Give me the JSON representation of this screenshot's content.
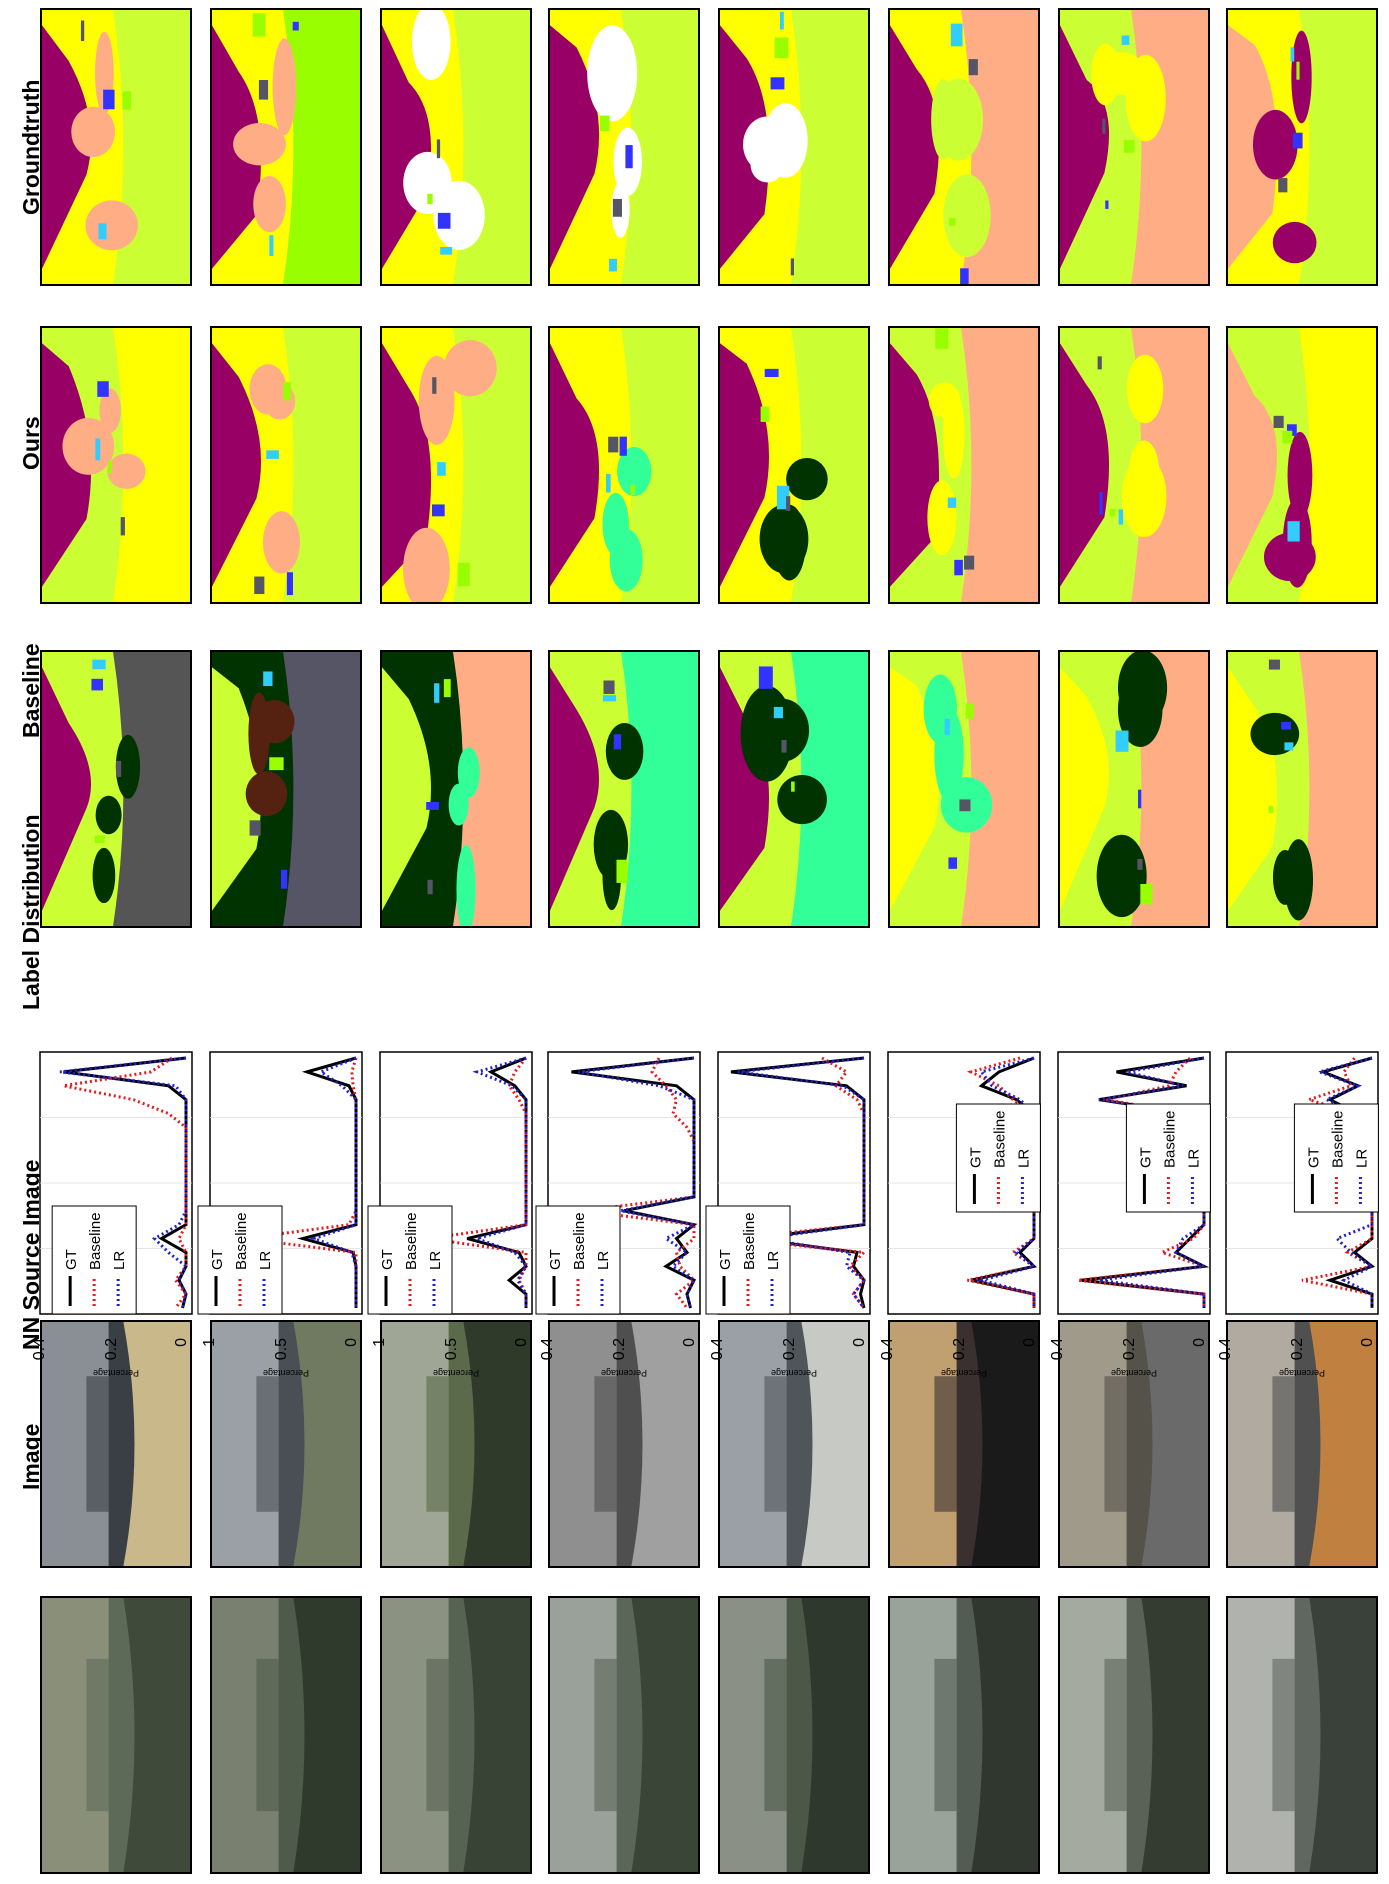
{
  "columns": {
    "image": "Image",
    "nn_source": "NN Source Image",
    "label_dist": "Label Distribution",
    "baseline": "Baseline",
    "ours": "Ours",
    "groundtruth": "Groundtruth"
  },
  "chart_common": {
    "ylabel": "Percentage",
    "legend": [
      "GT",
      "Baseline",
      "LR"
    ],
    "series_colors": {
      "GT": "#000000",
      "Baseline": "#e41a1c",
      "LR": "#1f1fd6"
    }
  },
  "chart_data": [
    {
      "type": "line",
      "ylim": [
        0,
        0.4
      ],
      "yticks": [
        "0.4",
        "0.2",
        "0"
      ],
      "legend_position": "right",
      "x": [
        1,
        2,
        3,
        4,
        5,
        6,
        7,
        8,
        9,
        10,
        11,
        12,
        13,
        14,
        15,
        16,
        17,
        18,
        19
      ],
      "series": [
        {
          "name": "GT",
          "values": [
            0.0,
            0.35,
            0.05,
            0.0,
            0.0,
            0.0,
            0.0,
            0.0,
            0.0,
            0.0,
            0.0,
            0.0,
            0.0,
            0.07,
            0.0,
            0.0,
            0.02,
            0.0,
            0.01
          ]
        },
        {
          "name": "Baseline",
          "values": [
            0.04,
            0.1,
            0.35,
            0.15,
            0.05,
            0.0,
            0.0,
            0.0,
            0.0,
            0.0,
            0.0,
            0.0,
            0.0,
            0.02,
            0.0,
            0.0,
            0.03,
            0.0,
            0.03
          ]
        },
        {
          "name": "LR",
          "values": [
            0.0,
            0.36,
            0.03,
            0.0,
            0.0,
            0.0,
            0.0,
            0.0,
            0.0,
            0.0,
            0.0,
            0.0,
            0.02,
            0.09,
            0.05,
            0.0,
            0.02,
            0.0,
            0.01
          ]
        }
      ]
    },
    {
      "type": "line",
      "ylim": [
        0,
        1
      ],
      "yticks": [
        "1",
        "0.5",
        "0"
      ],
      "legend_position": "top-right",
      "x": [
        1,
        2,
        3,
        4,
        5,
        6,
        7,
        8,
        9,
        10,
        11,
        12,
        13,
        14,
        15,
        16,
        17,
        18,
        19
      ],
      "series": [
        {
          "name": "GT",
          "values": [
            0.0,
            0.35,
            0.05,
            0.0,
            0.0,
            0.0,
            0.0,
            0.0,
            0.0,
            0.0,
            0.0,
            0.0,
            0.0,
            0.38,
            0.02,
            0.0,
            0.0,
            0.0,
            0.0
          ]
        },
        {
          "name": "Baseline",
          "values": [
            0.0,
            0.03,
            0.02,
            0.0,
            0.0,
            0.0,
            0.0,
            0.0,
            0.0,
            0.0,
            0.0,
            0.0,
            0.05,
            0.8,
            0.0,
            0.0,
            0.0,
            0.0,
            0.0
          ]
        },
        {
          "name": "LR",
          "values": [
            0.0,
            0.25,
            0.1,
            0.0,
            0.0,
            0.0,
            0.0,
            0.0,
            0.0,
            0.0,
            0.0,
            0.0,
            0.0,
            0.3,
            0.03,
            0.0,
            0.0,
            0.0,
            0.0
          ]
        }
      ]
    },
    {
      "type": "line",
      "ylim": [
        0,
        1
      ],
      "yticks": [
        "1",
        "0.5",
        "0"
      ],
      "legend_position": "top-right",
      "x": [
        1,
        2,
        3,
        4,
        5,
        6,
        7,
        8,
        9,
        10,
        11,
        12,
        13,
        14,
        15,
        16,
        17,
        18,
        19
      ],
      "series": [
        {
          "name": "GT",
          "values": [
            0.0,
            0.25,
            0.08,
            0.0,
            0.0,
            0.0,
            0.0,
            0.0,
            0.0,
            0.0,
            0.0,
            0.0,
            0.0,
            0.42,
            0.05,
            0.0,
            0.12,
            0.0,
            0.0
          ]
        },
        {
          "name": "Baseline",
          "values": [
            0.0,
            0.08,
            0.12,
            0.05,
            0.0,
            0.0,
            0.0,
            0.0,
            0.0,
            0.0,
            0.0,
            0.0,
            0.0,
            0.7,
            0.0,
            0.0,
            0.05,
            0.0,
            0.0
          ]
        },
        {
          "name": "LR",
          "values": [
            0.0,
            0.35,
            0.1,
            0.0,
            0.0,
            0.0,
            0.0,
            0.0,
            0.0,
            0.0,
            0.0,
            0.0,
            0.0,
            0.35,
            0.08,
            0.0,
            0.06,
            0.0,
            0.0
          ]
        }
      ]
    },
    {
      "type": "line",
      "ylim": [
        0,
        0.4
      ],
      "yticks": [
        "0.4",
        "0.2",
        "0"
      ],
      "legend_position": "top-right",
      "x": [
        1,
        2,
        3,
        4,
        5,
        6,
        7,
        8,
        9,
        10,
        11,
        12,
        13,
        14,
        15,
        16,
        17,
        18,
        19
      ],
      "series": [
        {
          "name": "GT",
          "values": [
            0.0,
            0.35,
            0.05,
            0.0,
            0.0,
            0.0,
            0.0,
            0.0,
            0.0,
            0.0,
            0.0,
            0.2,
            0.0,
            0.05,
            0.02,
            0.08,
            0.0,
            0.02,
            0.01
          ]
        },
        {
          "name": "Baseline",
          "values": [
            0.1,
            0.12,
            0.08,
            0.05,
            0.06,
            0.02,
            0.0,
            0.0,
            0.0,
            0.0,
            0.0,
            0.32,
            0.0,
            0.0,
            0.05,
            0.04,
            0.0,
            0.05,
            0.02
          ]
        },
        {
          "name": "LR",
          "values": [
            0.0,
            0.33,
            0.1,
            0.0,
            0.0,
            0.0,
            0.0,
            0.0,
            0.0,
            0.0,
            0.0,
            0.21,
            0.0,
            0.08,
            0.02,
            0.06,
            0.0,
            0.02,
            0.01
          ]
        }
      ]
    },
    {
      "type": "line",
      "ylim": [
        0,
        0.4
      ],
      "yticks": [
        "0.4",
        "0.2",
        "0"
      ],
      "legend_position": "top-right",
      "x": [
        1,
        2,
        3,
        4,
        5,
        6,
        7,
        8,
        9,
        10,
        11,
        12,
        13,
        14,
        15,
        16,
        17,
        18,
        19
      ],
      "series": [
        {
          "name": "GT",
          "values": [
            0.0,
            0.38,
            0.05,
            0.0,
            0.0,
            0.0,
            0.0,
            0.0,
            0.0,
            0.0,
            0.0,
            0.0,
            0.0,
            0.32,
            0.02,
            0.03,
            0.0,
            0.01,
            0.0
          ]
        },
        {
          "name": "Baseline",
          "values": [
            0.12,
            0.05,
            0.08,
            0.02,
            0.0,
            0.0,
            0.0,
            0.0,
            0.0,
            0.0,
            0.0,
            0.0,
            0.0,
            0.38,
            0.0,
            0.04,
            0.0,
            0.03,
            0.0
          ]
        },
        {
          "name": "LR",
          "values": [
            0.0,
            0.36,
            0.06,
            0.0,
            0.0,
            0.0,
            0.0,
            0.0,
            0.0,
            0.0,
            0.0,
            0.0,
            0.0,
            0.29,
            0.04,
            0.05,
            0.0,
            0.03,
            0.0
          ]
        }
      ]
    },
    {
      "type": "line",
      "ylim": [
        0,
        0.4
      ],
      "yticks": [
        "0.4",
        "0.2",
        "0"
      ],
      "legend_position": "bottom-right",
      "x": [
        1,
        2,
        3,
        4,
        5,
        6,
        7,
        8,
        9,
        10,
        11,
        12,
        13,
        14,
        15,
        16,
        17,
        18,
        19
      ],
      "series": [
        {
          "name": "GT",
          "values": [
            0.0,
            0.1,
            0.15,
            0.05,
            0.0,
            0.0,
            0.0,
            0.0,
            0.0,
            0.0,
            0.0,
            0.0,
            0.0,
            0.0,
            0.04,
            0.0,
            0.18,
            0.0,
            0.0
          ]
        },
        {
          "name": "Baseline",
          "values": [
            0.04,
            0.18,
            0.1,
            0.06,
            0.0,
            0.0,
            0.0,
            0.0,
            0.0,
            0.0,
            0.0,
            0.0,
            0.0,
            0.0,
            0.06,
            0.0,
            0.19,
            0.0,
            0.0
          ]
        },
        {
          "name": "LR",
          "values": [
            0.0,
            0.15,
            0.12,
            0.04,
            0.0,
            0.0,
            0.0,
            0.0,
            0.0,
            0.0,
            0.0,
            0.0,
            0.0,
            0.0,
            0.05,
            0.0,
            0.15,
            0.0,
            0.0
          ]
        }
      ]
    },
    {
      "type": "line",
      "ylim": [
        0,
        0.4
      ],
      "yticks": [
        "0.4",
        "0.2",
        "0"
      ],
      "legend_position": "bottom-right",
      "x": [
        1,
        2,
        3,
        4,
        5,
        6,
        7,
        8,
        9,
        10,
        11,
        12,
        13,
        14,
        15,
        16,
        17,
        18,
        19
      ],
      "series": [
        {
          "name": "GT",
          "values": [
            0.0,
            0.25,
            0.05,
            0.3,
            0.04,
            0.0,
            0.0,
            0.0,
            0.0,
            0.0,
            0.0,
            0.0,
            0.0,
            0.04,
            0.08,
            0.0,
            0.35,
            0.0,
            0.0
          ]
        },
        {
          "name": "Baseline",
          "values": [
            0.04,
            0.08,
            0.1,
            0.28,
            0.05,
            0.0,
            0.0,
            0.0,
            0.0,
            0.0,
            0.0,
            0.0,
            0.0,
            0.03,
            0.12,
            0.0,
            0.36,
            0.0,
            0.0
          ]
        },
        {
          "name": "LR",
          "values": [
            0.0,
            0.22,
            0.06,
            0.3,
            0.04,
            0.0,
            0.0,
            0.0,
            0.0,
            0.0,
            0.0,
            0.0,
            0.0,
            0.06,
            0.08,
            0.0,
            0.3,
            0.0,
            0.0
          ]
        }
      ]
    },
    {
      "type": "line",
      "ylim": [
        0,
        0.4
      ],
      "yticks": [
        "0.4",
        "0.2",
        "0"
      ],
      "legend_position": "bottom-right",
      "x": [
        1,
        2,
        3,
        4,
        5,
        6,
        7,
        8,
        9,
        10,
        11,
        12,
        13,
        14,
        15,
        16,
        17,
        18,
        19
      ],
      "series": [
        {
          "name": "GT",
          "values": [
            0.0,
            0.14,
            0.04,
            0.12,
            0.04,
            0.0,
            0.0,
            0.0,
            0.0,
            0.0,
            0.0,
            0.0,
            0.0,
            0.0,
            0.05,
            0.0,
            0.12,
            0.0,
            0.0
          ]
        },
        {
          "name": "Baseline",
          "values": [
            0.05,
            0.08,
            0.06,
            0.18,
            0.05,
            0.0,
            0.0,
            0.0,
            0.0,
            0.0,
            0.0,
            0.0,
            0.0,
            0.0,
            0.07,
            0.0,
            0.2,
            0.0,
            0.0
          ]
        },
        {
          "name": "LR",
          "values": [
            0.0,
            0.15,
            0.04,
            0.13,
            0.03,
            0.0,
            0.0,
            0.0,
            0.0,
            0.0,
            0.0,
            0.0,
            0.0,
            0.1,
            0.06,
            0.0,
            0.08,
            0.0,
            0.0
          ]
        }
      ]
    }
  ],
  "rows": [
    {
      "photo": [
        "#5d6a58",
        "#8a8f7a",
        "#3f4a3a"
      ],
      "nn": [
        "#3a3f45",
        "#8a8f95",
        "#c9b98a"
      ],
      "baseline": [
        "#ccff33",
        "#990066",
        "#555555",
        "#003300"
      ],
      "ours": [
        "#ccff33",
        "#990066",
        "#ffff00",
        "#ffad85"
      ],
      "gt": [
        "#ffff00",
        "#990066",
        "#ccff33",
        "#ffad85"
      ]
    },
    {
      "photo": [
        "#4e5b4a",
        "#7a8070",
        "#2f3a2d"
      ],
      "nn": [
        "#4a4f55",
        "#9aa0a5",
        "#6f7a60"
      ],
      "baseline": [
        "#003300",
        "#ccff33",
        "#555566",
        "#552211"
      ],
      "ours": [
        "#ffff00",
        "#990066",
        "#ccff33",
        "#ffad85"
      ],
      "gt": [
        "#ffff00",
        "#990066",
        "#99ff00",
        "#ffad85"
      ]
    },
    {
      "photo": [
        "#566352",
        "#8c9282",
        "#384335"
      ],
      "nn": [
        "#5a6a4a",
        "#a0a695",
        "#2f3a2a"
      ],
      "baseline": [
        "#003300",
        "#ccff33",
        "#ffad85",
        "#33ff99"
      ],
      "ours": [
        "#ffff00",
        "#990066",
        "#ccff33",
        "#ffad85"
      ],
      "gt": [
        "#ffff00",
        "#990066",
        "#ccff33",
        "#ffffff"
      ]
    },
    {
      "photo": [
        "#5a6658",
        "#9aa09a",
        "#3a4538"
      ],
      "nn": [
        "#4f4f4f",
        "#8f8f8f",
        "#a0a0a0"
      ],
      "baseline": [
        "#ccff33",
        "#990066",
        "#33ff99",
        "#003300"
      ],
      "ours": [
        "#ffff00",
        "#990066",
        "#ccff33",
        "#33ff99"
      ],
      "gt": [
        "#ffff00",
        "#990066",
        "#ccff33",
        "#ffffff"
      ]
    },
    {
      "photo": [
        "#4b5848",
        "#8a9085",
        "#2e382c"
      ],
      "nn": [
        "#50555a",
        "#9aa0a5",
        "#c7c9c5"
      ],
      "baseline": [
        "#ccff33",
        "#990066",
        "#33ff99",
        "#003300"
      ],
      "ours": [
        "#ffff00",
        "#990066",
        "#ccff33",
        "#003300"
      ],
      "gt": [
        "#ffff00",
        "#990066",
        "#ccff33",
        "#ffffff"
      ]
    },
    {
      "photo": [
        "#525c52",
        "#9aa39a",
        "#2f372f"
      ],
      "nn": [
        "#3a3030",
        "#c0a070",
        "#1a1a1a"
      ],
      "baseline": [
        "#ccff33",
        "#ffff00",
        "#ffad85",
        "#33ff99"
      ],
      "ours": [
        "#ccff33",
        "#990066",
        "#ffad85",
        "#ffff00"
      ],
      "gt": [
        "#ffff00",
        "#990066",
        "#ffad85",
        "#ccff33"
      ]
    },
    {
      "photo": [
        "#5a6258",
        "#a5aaa0",
        "#343c32"
      ],
      "nn": [
        "#55524a",
        "#a09a8a",
        "#6a6a6a"
      ],
      "baseline": [
        "#ccff33",
        "#ffff00",
        "#ffad85",
        "#003300"
      ],
      "ours": [
        "#ccff33",
        "#990066",
        "#ffad85",
        "#ffff00"
      ],
      "gt": [
        "#ccff33",
        "#990066",
        "#ffad85",
        "#ffff00"
      ]
    },
    {
      "photo": [
        "#606660",
        "#b0b3ad",
        "#3a403a"
      ],
      "nn": [
        "#505050",
        "#b0aaa0",
        "#c08040"
      ],
      "baseline": [
        "#ccff33",
        "#ffff00",
        "#ffad85",
        "#003300"
      ],
      "ours": [
        "#ccff33",
        "#ffad85",
        "#ffff00",
        "#990066"
      ],
      "gt": [
        "#ffff00",
        "#ffad85",
        "#ccff33",
        "#990066"
      ]
    }
  ]
}
